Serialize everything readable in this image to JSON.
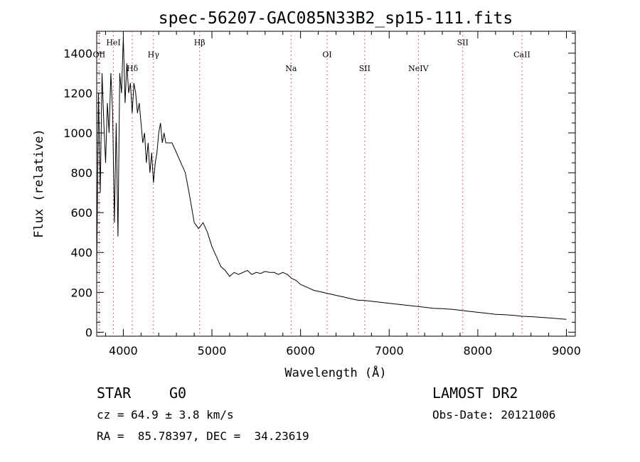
{
  "chart_data": {
    "type": "line",
    "title": "spec-56207-GAC085N33B2_sp15-111.fits",
    "xlabel": "Wavelength (Å)",
    "ylabel": "Flux (relative)",
    "xlim": [
      3700,
      9100
    ],
    "ylim": [
      -20,
      1510
    ],
    "x_ticks": [
      4000,
      5000,
      6000,
      7000,
      8000,
      9000
    ],
    "y_ticks": [
      0,
      200,
      400,
      600,
      800,
      1000,
      1200,
      1400
    ],
    "line_color": "#000000",
    "marker_color": "#cc3333",
    "grid": false,
    "series": [
      {
        "x": [
          3700,
          3720,
          3740,
          3760,
          3780,
          3800,
          3820,
          3840,
          3860,
          3880,
          3900,
          3920,
          3940,
          3960,
          3980,
          4000,
          4020,
          4040,
          4060,
          4080,
          4100,
          4120,
          4140,
          4160,
          4180,
          4200,
          4220,
          4240,
          4260,
          4280,
          4300,
          4320,
          4340,
          4360,
          4380,
          4400,
          4420,
          4440,
          4460,
          4480,
          4500,
          4550,
          4600,
          4650,
          4700,
          4750,
          4800,
          4850,
          4900,
          4950,
          5000,
          5050,
          5100,
          5150,
          5200,
          5250,
          5300,
          5350,
          5400,
          5450,
          5500,
          5550,
          5600,
          5650,
          5700,
          5750,
          5800,
          5850,
          5900,
          5950,
          6000,
          6050,
          6100,
          6150,
          6200,
          6250,
          6300,
          6350,
          6400,
          6450,
          6500,
          6550,
          6600,
          6650,
          6700,
          6750,
          6800,
          6900,
          7000,
          7100,
          7200,
          7300,
          7400,
          7500,
          7600,
          7700,
          7800,
          7900,
          8000,
          8100,
          8200,
          8300,
          8400,
          8500,
          8600,
          8700,
          8800,
          8900,
          9000
        ],
        "y": [
          300,
          1200,
          700,
          1300,
          1050,
          850,
          1150,
          1000,
          1300,
          1100,
          550,
          1050,
          480,
          1300,
          1200,
          1480,
          1150,
          1350,
          1200,
          1250,
          1100,
          1250,
          1200,
          1100,
          1150,
          1050,
          950,
          1000,
          850,
          950,
          800,
          900,
          750,
          850,
          900,
          1000,
          1050,
          950,
          1000,
          950,
          950,
          950,
          900,
          850,
          800,
          680,
          550,
          520,
          550,
          500,
          430,
          380,
          330,
          310,
          280,
          300,
          290,
          300,
          310,
          290,
          300,
          295,
          305,
          300,
          300,
          290,
          300,
          290,
          270,
          260,
          240,
          230,
          220,
          210,
          205,
          200,
          195,
          190,
          185,
          180,
          175,
          170,
          165,
          160,
          160,
          158,
          155,
          150,
          145,
          140,
          135,
          130,
          125,
          120,
          118,
          115,
          110,
          105,
          100,
          95,
          90,
          88,
          85,
          80,
          78,
          75,
          72,
          68,
          65
        ]
      }
    ],
    "lines": [
      {
        "name": "OII",
        "x": 3727,
        "label_y": 1380
      },
      {
        "name": "HeI",
        "x": 3889,
        "label_y": 1440
      },
      {
        "name": "Hδ",
        "x": 4102,
        "label_y": 1310
      },
      {
        "name": "Hγ",
        "x": 4340,
        "label_y": 1380
      },
      {
        "name": "Hβ",
        "x": 4861,
        "label_y": 1440
      },
      {
        "name": "Na",
        "x": 5893,
        "label_y": 1310
      },
      {
        "name": "OI",
        "x": 6300,
        "label_y": 1380
      },
      {
        "name": "SII",
        "x": 6724,
        "label_y": 1310
      },
      {
        "name": "NeIV",
        "x": 7330,
        "label_y": 1310
      },
      {
        "name": "SII",
        "x": 7830,
        "label_y": 1440
      },
      {
        "name": "CaII",
        "x": 8498,
        "label_y": 1380
      }
    ]
  },
  "info": {
    "class_label": "STAR",
    "subclass_label": "G0",
    "velocity": "cz = 64.9 ± 3.8 km/s",
    "coords": "RA =  85.78397, DEC =  34.23619",
    "survey": "LAMOST DR2",
    "obs_date": "Obs-Date: 20121006"
  }
}
